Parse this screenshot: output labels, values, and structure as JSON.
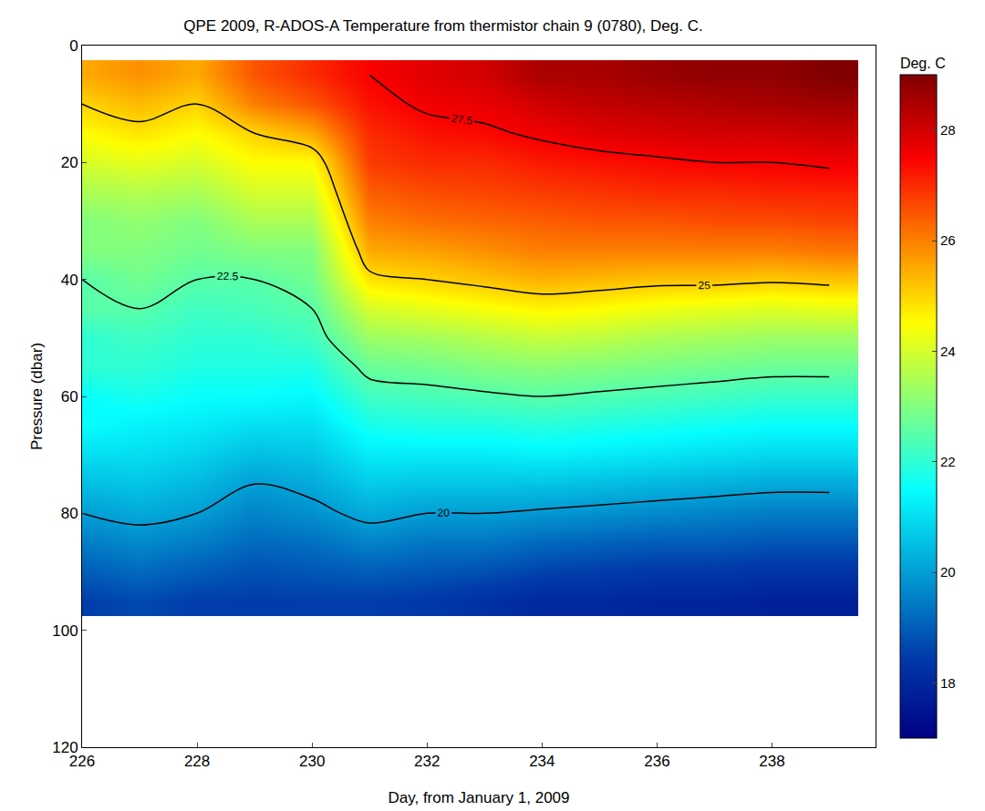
{
  "chart_data": {
    "type": "heatmap",
    "title": "QPE 2009, R-ADOS-A Temperature from thermistor chain 9 (0780), Deg. C.",
    "x_label": "Day, from January 1, 2009",
    "y_label": "Pressure (dbar)",
    "colorbar_title": "Deg. C",
    "color": "Jet",
    "grid": false,
    "xlim": [
      226,
      239.8
    ],
    "xticks": [
      226,
      228,
      230,
      232,
      234,
      236,
      238
    ],
    "ylim": [
      120,
      0
    ],
    "yticks": [
      0,
      20,
      40,
      60,
      80,
      100,
      120
    ],
    "zlim": [
      17,
      29
    ],
    "zticks": [
      18,
      20,
      22,
      24,
      26,
      28
    ],
    "contour_levels": [
      20,
      22.5,
      25,
      27.5
    ],
    "x": [
      226,
      227,
      228,
      229,
      230,
      231,
      232,
      233,
      234,
      235,
      236,
      237,
      238,
      239
    ],
    "y": [
      5,
      10,
      15,
      20,
      25,
      30,
      35,
      40,
      45,
      50,
      55,
      60,
      65,
      70,
      75,
      80,
      85,
      90,
      95
    ],
    "cells": [
      [
        25.5,
        25,
        24.5,
        24,
        23.5,
        23,
        23,
        22.5,
        22.5,
        22,
        22,
        21.5,
        21.5,
        21,
        20.5,
        20,
        19.5,
        19,
        18.5
      ],
      [
        25.8,
        25.3,
        24.8,
        24.2,
        23.6,
        23.2,
        23,
        22.8,
        22.5,
        22.2,
        22,
        21.7,
        21.3,
        21,
        20.6,
        20.2,
        19.7,
        19.2,
        18.7
      ],
      [
        25.5,
        25,
        24.5,
        24,
        23.5,
        23,
        22.8,
        22.5,
        22.2,
        22,
        21.8,
        21.5,
        21.2,
        20.8,
        20.4,
        20,
        19.5,
        19,
        18.5
      ],
      [
        26.5,
        26,
        25,
        24.5,
        24,
        23.5,
        23,
        22.5,
        22.3,
        22,
        21.8,
        21.5,
        21,
        20.5,
        20,
        19.6,
        19.2,
        18.8,
        18.5
      ],
      [
        27,
        26.5,
        25.5,
        24.5,
        24,
        23.5,
        23,
        22.8,
        22.5,
        22.2,
        21.8,
        21.4,
        21,
        20.6,
        20.2,
        19.8,
        19.3,
        18.9,
        18.5
      ],
      [
        27.5,
        27.3,
        27,
        26.8,
        26.4,
        26,
        25.5,
        24.8,
        24,
        23.3,
        22.7,
        22.2,
        21.7,
        21.2,
        20.7,
        20.2,
        19.6,
        19,
        18.5
      ],
      [
        27.8,
        27.6,
        27.3,
        27,
        26.6,
        26.2,
        25.6,
        25,
        24.2,
        23.4,
        22.8,
        22.3,
        21.8,
        21.2,
        20.6,
        20,
        19.4,
        18.9,
        18.4
      ],
      [
        28,
        27.7,
        27.4,
        27,
        26.7,
        26.3,
        25.8,
        25.2,
        24.4,
        23.6,
        23,
        22.4,
        21.8,
        21.2,
        20.6,
        20,
        19.4,
        18.8,
        18.2
      ],
      [
        28.5,
        28,
        27.6,
        27.2,
        26.8,
        26.4,
        26,
        25.4,
        24.6,
        23.8,
        23.1,
        22.5,
        21.9,
        21.3,
        20.6,
        19.9,
        19.2,
        18.6,
        18
      ],
      [
        28.5,
        28.2,
        27.8,
        27.3,
        26.9,
        26.5,
        26,
        25.3,
        24.5,
        23.7,
        23,
        22.4,
        21.8,
        21.2,
        20.5,
        19.8,
        19.1,
        18.5,
        18
      ],
      [
        28.7,
        28.3,
        27.9,
        27.4,
        27,
        26.5,
        26,
        25.2,
        24.3,
        23.5,
        22.9,
        22.3,
        21.7,
        21.1,
        20.4,
        19.7,
        19,
        18.4,
        17.9
      ],
      [
        28.8,
        28.4,
        28,
        27.5,
        27,
        26.6,
        26,
        25.2,
        24.2,
        23.4,
        22.8,
        22.2,
        21.6,
        21,
        20.3,
        19.6,
        19,
        18.4,
        17.9
      ],
      [
        28.8,
        28.5,
        28,
        27.5,
        27.1,
        26.6,
        26,
        25.1,
        24.1,
        23.3,
        22.7,
        22.1,
        21.5,
        20.9,
        20.2,
        19.5,
        18.9,
        18.3,
        17.8
      ],
      [
        29,
        28.6,
        28.1,
        27.6,
        27.1,
        26.7,
        26.1,
        25.2,
        24.2,
        23.3,
        22.7,
        22.1,
        21.5,
        20.9,
        20.2,
        19.5,
        18.9,
        18.3,
        17.8
      ]
    ]
  }
}
